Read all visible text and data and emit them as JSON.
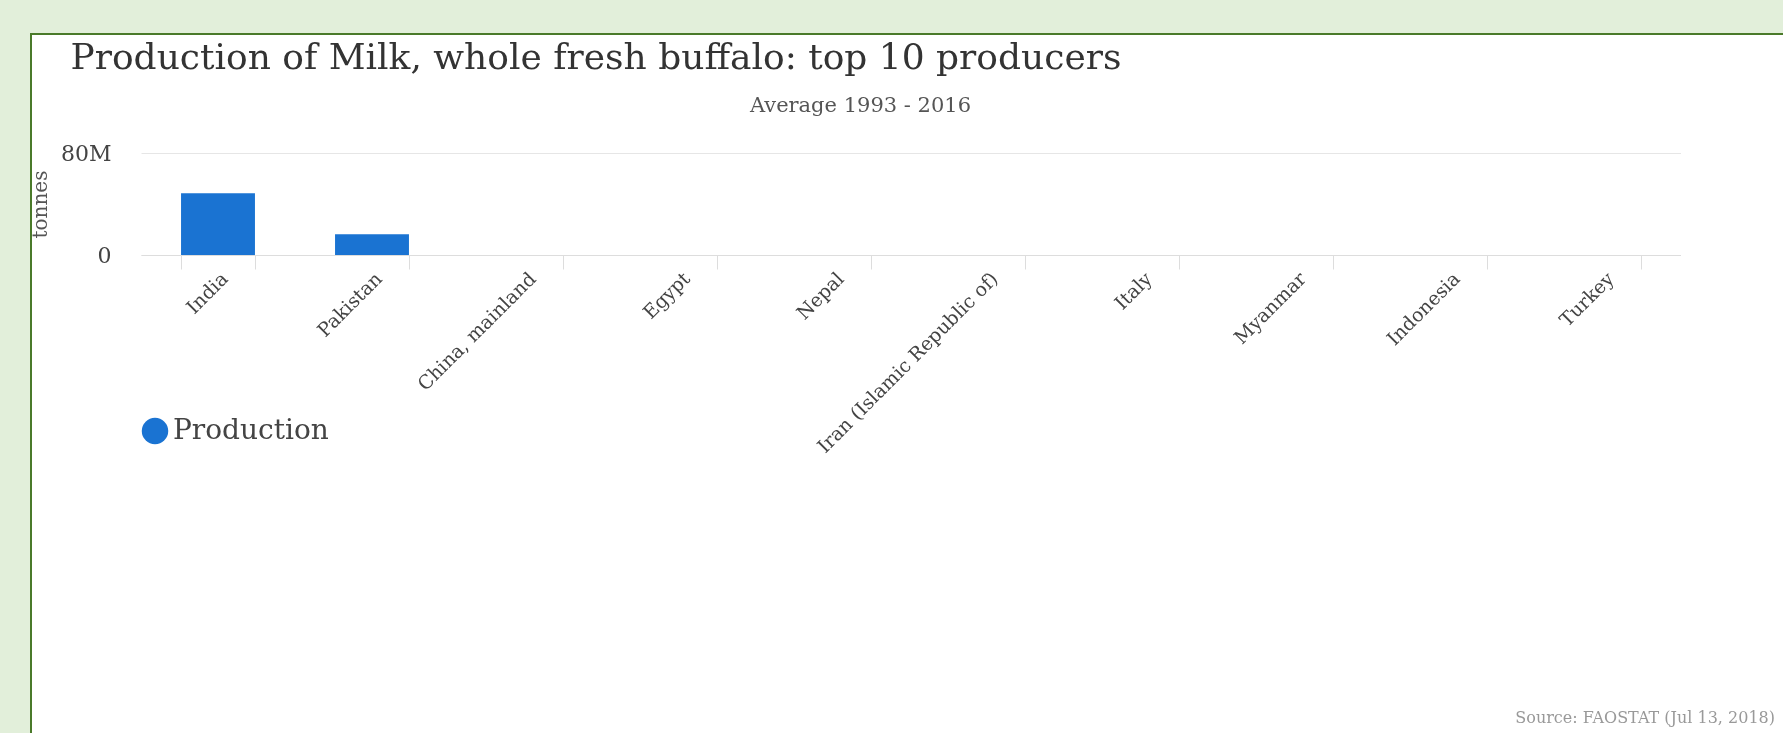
{
  "chart_data": {
    "type": "bar",
    "title": "Production of Milk, whole fresh buffalo: top 10 producers",
    "subtitle": "Average 1993 - 2016",
    "ylabel": "tonnes",
    "categories": [
      "India",
      "Pakistan",
      "China, mainland",
      "Egypt",
      "Nepal",
      "Iran (Islamic Republic of)",
      "Italy",
      "Myanmar",
      "Indonesia",
      "Turkey"
    ],
    "series": [
      {
        "name": "Production",
        "color": "#1a73d2",
        "values": [
          48400000,
          16300000,
          0,
          0,
          0,
          0,
          0,
          0,
          0,
          0
        ]
      }
    ],
    "ylim": [
      0,
      80000000
    ],
    "yticks": [
      0,
      {
        "value": 80000000,
        "label": "80M"
      }
    ],
    "grid": "y",
    "legend": "bottom",
    "annotations": [
      "Source: FAOSTAT (Jul 13, 2018)"
    ]
  }
}
